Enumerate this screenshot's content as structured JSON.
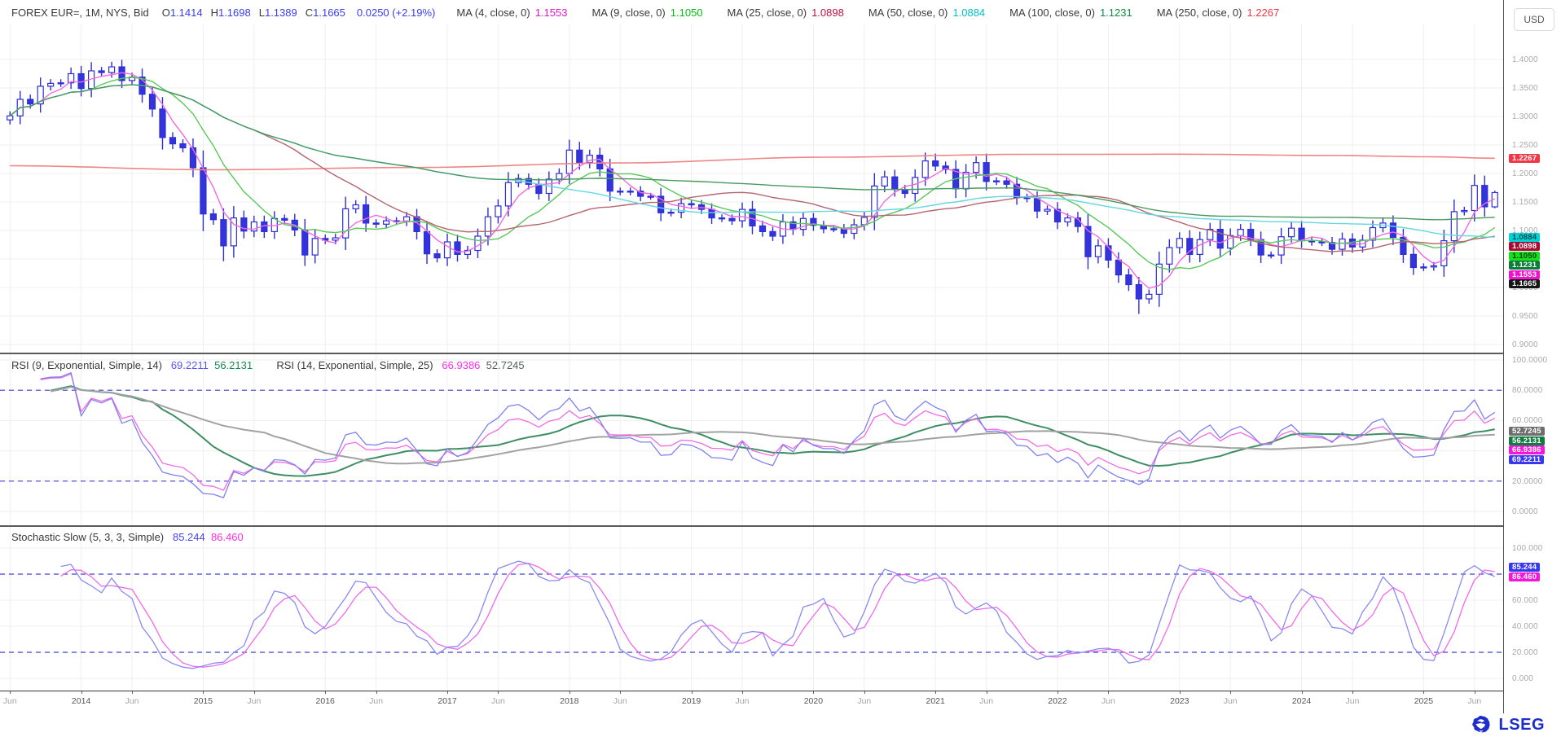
{
  "header": {
    "title": "FOREX EUR=, 1M, NYS, Bid",
    "ohlc": [
      {
        "label": "O",
        "value": "1.1414"
      },
      {
        "label": "H",
        "value": "1.1698"
      },
      {
        "label": "L",
        "value": "1.1389"
      },
      {
        "label": "C",
        "value": "1.1665"
      }
    ],
    "change": "0.0250 (+2.19%)",
    "value_color": "#3b3bf5",
    "ma_legend": [
      {
        "label": "MA (4, close, 0)",
        "value": "1.1553",
        "color": "#ef13cd"
      },
      {
        "label": "MA (9, close, 0)",
        "value": "1.1050",
        "color": "#00bd13"
      },
      {
        "label": "MA (25, close, 0)",
        "value": "1.0898",
        "color": "#c40f44"
      },
      {
        "label": "MA (50, close, 0)",
        "value": "1.0884",
        "color": "#00c0cb"
      },
      {
        "label": "MA (100, close, 0)",
        "value": "1.1231",
        "color": "#0c8b40"
      },
      {
        "label": "MA (250, close, 0)",
        "value": "1.2267",
        "color": "#f23645"
      }
    ],
    "currency_chip": "USD"
  },
  "rsi_panel": {
    "label1": "RSI (9, Exponential, Simple, 14)",
    "v1": "69.2211",
    "v1_color": "#5656f5",
    "s1": "56.2131",
    "s1_color": "#168a52",
    "label2": "RSI (14, Exponential, Simple, 25)",
    "v2": "66.9386",
    "v2_color": "#ff2ee8",
    "s2": "52.7245",
    "s2_color": "#565f5f"
  },
  "stoch_panel": {
    "label": "Stochastic Slow (5, 3, 3, Simple)",
    "k": "85.244",
    "k_color": "#4343f2",
    "d": "86.460",
    "d_color": "#ff2ee8"
  },
  "footer": {
    "brand": "LSEG",
    "brand_color": "#1d2ecb"
  },
  "axes": {
    "price_ticks": [
      {
        "label": "1.4000",
        "value": 1.4
      },
      {
        "label": "1.3500",
        "value": 1.35
      },
      {
        "label": "1.3000",
        "value": 1.3
      },
      {
        "label": "1.2500",
        "value": 1.25
      },
      {
        "label": "1.2000",
        "value": 1.2
      },
      {
        "label": "1.1500",
        "value": 1.15
      },
      {
        "label": "1.1000",
        "value": 1.1
      },
      {
        "label": "1.0500",
        "value": 1.05
      },
      {
        "label": "1.0000",
        "value": 1.0
      },
      {
        "label": "0.9500",
        "value": 0.95
      },
      {
        "label": "0.9000",
        "value": 0.9
      }
    ],
    "price_badges": [
      {
        "label": "1.2267",
        "value": 1.2267,
        "bg": "#f23645",
        "fg": "#ffffff"
      },
      {
        "label": "1.1665",
        "value": 1.1665,
        "bg": "#161616",
        "fg": "#ffffff"
      },
      {
        "label": "1.1553",
        "value": 1.1553,
        "bg": "#ef13cd",
        "fg": "#ffffff"
      },
      {
        "label": "1.1231",
        "value": 1.1231,
        "bg": "#0a7d38",
        "fg": "#ffffff"
      },
      {
        "label": "1.1050",
        "value": 1.105,
        "bg": "#17e01b",
        "fg": "#083f16"
      },
      {
        "label": "1.0898",
        "value": 1.0898,
        "bg": "#a50d35",
        "fg": "#ffffff"
      },
      {
        "label": "1.0884",
        "value": 1.0884,
        "bg": "#00d2d8",
        "fg": "#064a4d"
      }
    ],
    "rsi_ticks": [
      {
        "label": "100.0000",
        "value": 100
      },
      {
        "label": "80.0000",
        "value": 80
      },
      {
        "label": "60.0000",
        "value": 60
      },
      {
        "label": "40.0000",
        "value": 40
      },
      {
        "label": "20.0000",
        "value": 20
      },
      {
        "label": "0.0000",
        "value": 0
      }
    ],
    "rsi_badges": [
      {
        "label": "69.2211",
        "value": 69.2211,
        "bg": "#3838f0",
        "fg": "#ffffff"
      },
      {
        "label": "66.9386",
        "value": 66.9386,
        "bg": "#f516d8",
        "fg": "#ffffff"
      },
      {
        "label": "56.2131",
        "value": 56.2131,
        "bg": "#107a40",
        "fg": "#ffffff"
      },
      {
        "label": "52.7245",
        "value": 52.7245,
        "bg": "#6e6e6e",
        "fg": "#ffffff"
      }
    ],
    "stoch_ticks": [
      {
        "label": "100.000",
        "value": 100
      },
      {
        "label": "80.000",
        "value": 80
      },
      {
        "label": "60.000",
        "value": 60
      },
      {
        "label": "40.000",
        "value": 40
      },
      {
        "label": "20.000",
        "value": 20
      },
      {
        "label": "0.000",
        "value": 0
      }
    ],
    "stoch_badges": [
      {
        "label": "86.460",
        "value": 86.46,
        "bg": "#f516d8",
        "fg": "#ffffff"
      },
      {
        "label": "85.244",
        "value": 85.244,
        "bg": "#3838f0",
        "fg": "#ffffff"
      }
    ],
    "years": [
      "2014",
      "2015",
      "2016",
      "2017",
      "2018",
      "2019",
      "2020",
      "2021",
      "2022",
      "2023",
      "2024",
      "2025"
    ],
    "mid_label": "Jun"
  },
  "chart_data": {
    "type": "candlestick",
    "symbol": "EUR=",
    "interval": "1M",
    "x_start": "2013-06",
    "x_end": "2025-08",
    "first_open": 1.294,
    "closes": [
      1.301,
      1.33,
      1.322,
      1.353,
      1.358,
      1.359,
      1.375,
      1.349,
      1.38,
      1.377,
      1.387,
      1.363,
      1.369,
      1.339,
      1.313,
      1.263,
      1.252,
      1.245,
      1.21,
      1.129,
      1.119,
      1.073,
      1.122,
      1.099,
      1.115,
      1.098,
      1.121,
      1.118,
      1.101,
      1.057,
      1.086,
      1.083,
      1.087,
      1.138,
      1.145,
      1.113,
      1.111,
      1.117,
      1.116,
      1.124,
      1.098,
      1.059,
      1.052,
      1.08,
      1.058,
      1.065,
      1.09,
      1.124,
      1.143,
      1.184,
      1.191,
      1.181,
      1.165,
      1.19,
      1.2,
      1.241,
      1.219,
      1.232,
      1.208,
      1.169,
      1.168,
      1.169,
      1.16,
      1.16,
      1.131,
      1.132,
      1.147,
      1.145,
      1.137,
      1.122,
      1.121,
      1.117,
      1.137,
      1.108,
      1.098,
      1.09,
      1.115,
      1.102,
      1.121,
      1.109,
      1.103,
      1.103,
      1.095,
      1.11,
      1.123,
      1.178,
      1.194,
      1.172,
      1.165,
      1.193,
      1.222,
      1.213,
      1.207,
      1.173,
      1.202,
      1.219,
      1.186,
      1.187,
      1.181,
      1.158,
      1.156,
      1.134,
      1.137,
      1.115,
      1.122,
      1.107,
      1.054,
      1.073,
      1.048,
      1.022,
      1.005,
      0.98,
      0.988,
      1.041,
      1.07,
      1.086,
      1.058,
      1.084,
      1.102,
      1.069,
      1.091,
      1.102,
      1.084,
      1.057,
      1.057,
      1.089,
      1.104,
      1.082,
      1.08,
      1.079,
      1.067,
      1.085,
      1.071,
      1.083,
      1.105,
      1.113,
      1.088,
      1.058,
      1.035,
      1.036,
      1.038,
      1.082,
      1.133,
      1.135,
      1.179,
      1.1415,
      1.1665
    ],
    "last_bar": {
      "open": 1.1414,
      "high": 1.1698,
      "low": 1.1389,
      "close": 1.1665
    },
    "wick_overrides": {
      "11": {
        "high": 1.3993
      },
      "21": {
        "low": 1.046
      },
      "56": {
        "high": 1.2556
      },
      "91": {
        "high": 1.2349
      },
      "111": {
        "low": 0.9536
      }
    },
    "candle_colors": {
      "up_fill": "#ffffff",
      "down_fill": "#3434dc",
      "stroke": "#2e2ed8"
    },
    "moving_averages": [
      {
        "period": 4,
        "color": "#f06ae0"
      },
      {
        "period": 9,
        "color": "#58c958"
      },
      {
        "period": 25,
        "color": "#b5656f"
      },
      {
        "period": 50,
        "color": "#63d8e0"
      },
      {
        "period": 100,
        "color": "#47995f"
      }
    ],
    "ma250": {
      "color": "#f08585",
      "points": [
        [
          0,
          1.2135
        ],
        [
          20,
          1.2065
        ],
        [
          40,
          1.2105
        ],
        [
          60,
          1.2185
        ],
        [
          80,
          1.2285
        ],
        [
          100,
          1.2335
        ],
        [
          115,
          1.2338
        ],
        [
          130,
          1.2315
        ],
        [
          140,
          1.2292
        ],
        [
          146,
          1.2267
        ]
      ]
    },
    "rsi": {
      "periods": [
        9,
        14
      ],
      "signal_periods": [
        14,
        25
      ],
      "levels": [
        80,
        20
      ],
      "line1_color": "#8080f0",
      "sig1_color": "#3d8f63",
      "line2_color": "#f36ae2",
      "sig2_color": "#a2a2a2"
    },
    "stoch": {
      "k_period": 5,
      "slowing": 3,
      "d_period": 3,
      "levels": [
        80,
        20
      ],
      "k_color": "#8a8af2",
      "d_color": "#f06aea"
    },
    "level_line_color": "#4040d0",
    "grid_color": "#efefef"
  }
}
